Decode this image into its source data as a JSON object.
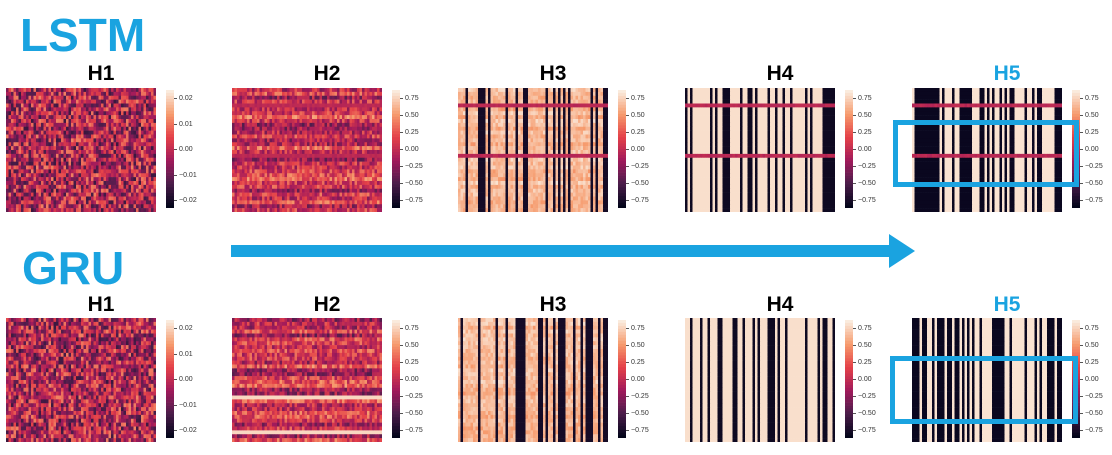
{
  "groups": [
    {
      "title": "LSTM",
      "panels": [
        {
          "label": "H1",
          "ticks": [
            "0.02",
            "0.01",
            "0.00",
            "−0.01",
            "−0.02"
          ],
          "style": "noise",
          "highlight": false
        },
        {
          "label": "H2",
          "ticks": [
            "0.75",
            "0.50",
            "0.25",
            "0.00",
            "−0.25",
            "−0.50",
            "−0.75"
          ],
          "style": "noise-rows",
          "highlight": false
        },
        {
          "label": "H3",
          "ticks": [
            "0.75",
            "0.50",
            "0.25",
            "0.00",
            "−0.25",
            "−0.50",
            "−0.75"
          ],
          "style": "stripes-soft",
          "highlight": false
        },
        {
          "label": "H4",
          "ticks": [
            "0.75",
            "0.50",
            "0.25",
            "0.00",
            "−0.25",
            "−0.50",
            "−0.75"
          ],
          "style": "stripes",
          "highlight": false
        },
        {
          "label": "H5",
          "ticks": [
            "0.75",
            "0.50",
            "0.25",
            "0.00",
            "−0.25",
            "−0.50",
            "−0.75"
          ],
          "style": "stripes-dense",
          "highlight": true
        }
      ]
    },
    {
      "title": "GRU",
      "panels": [
        {
          "label": "H1",
          "ticks": [
            "0.02",
            "0.01",
            "0.00",
            "−0.01",
            "−0.02"
          ],
          "style": "noise",
          "highlight": false
        },
        {
          "label": "H2",
          "ticks": [
            "0.75",
            "0.50",
            "0.25",
            "0.00",
            "−0.25",
            "−0.50",
            "−0.75"
          ],
          "style": "noise-rows",
          "highlight": false
        },
        {
          "label": "H3",
          "ticks": [
            "0.75",
            "0.50",
            "0.25",
            "0.00",
            "−0.25",
            "−0.50",
            "−0.75"
          ],
          "style": "stripes-soft",
          "highlight": false
        },
        {
          "label": "H4",
          "ticks": [
            "0.75",
            "0.50",
            "0.25",
            "0.00",
            "−0.25",
            "−0.50",
            "−0.75"
          ],
          "style": "stripes",
          "highlight": false
        },
        {
          "label": "H5",
          "ticks": [
            "0.75",
            "0.50",
            "0.25",
            "0.00",
            "−0.25",
            "−0.50",
            "−0.75"
          ],
          "style": "stripes-dense",
          "highlight": true
        }
      ]
    }
  ],
  "colors": {
    "accent": "#1aa3e0",
    "highlight_label": "#1aa3e0"
  }
}
